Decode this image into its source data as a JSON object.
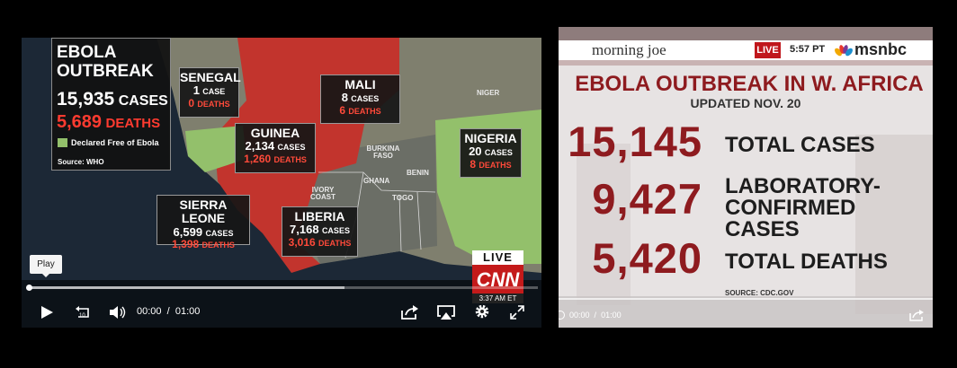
{
  "left_player": {
    "overlay": {
      "title": "EBOLA OUTBREAK",
      "cases": "15,935",
      "cases_label": "CASES",
      "deaths": "5,689",
      "deaths_label": "DEATHS",
      "legend": "Declared Free of Ebola",
      "source": "Source: WHO"
    },
    "countries": [
      {
        "name": "SENEGAL",
        "cases": "1",
        "cases_label": "CASE",
        "deaths": "0",
        "deaths_label": "DEATHS"
      },
      {
        "name": "MALI",
        "cases": "8",
        "cases_label": "CASES",
        "deaths": "6",
        "deaths_label": "DEATHS"
      },
      {
        "name": "GUINEA",
        "cases": "2,134",
        "cases_label": "CASES",
        "deaths": "1,260",
        "deaths_label": "DEATHS"
      },
      {
        "name": "NIGERIA",
        "cases": "20",
        "cases_label": "CASES",
        "deaths": "8",
        "deaths_label": "DEATHS"
      },
      {
        "name": "SIERRA LEONE",
        "cases": "6,599",
        "cases_label": "CASES",
        "deaths": "1,398",
        "deaths_label": "DEATHS"
      },
      {
        "name": "LIBERIA",
        "cases": "7,168",
        "cases_label": "CASES",
        "deaths": "3,016",
        "deaths_label": "DEATHS"
      }
    ],
    "map_labels": [
      "NIGER",
      "BURKINA FASO",
      "BENIN",
      "GHANA",
      "TOGO",
      "IVORY COAST"
    ],
    "network": {
      "live": "LIVE",
      "logo": "CNN",
      "time": "3:37 AM ET"
    },
    "tooltip": "Play",
    "controls": {
      "current": "00:00",
      "separator": "/",
      "duration": "01:00"
    }
  },
  "right_player": {
    "header": {
      "show": "morning joe",
      "live": "LIVE",
      "time": "5:57 PT",
      "network": "msnbc"
    },
    "title": "EBOLA OUTBREAK IN W. AFRICA",
    "subtitle": "UPDATED NOV. 20",
    "stats": [
      {
        "value": "15,145",
        "label": "TOTAL CASES"
      },
      {
        "value": "9,427",
        "label": "LABORATORY-CONFIRMED CASES"
      },
      {
        "value": "5,420",
        "label": "TOTAL DEATHS"
      }
    ],
    "source": "SOURCE: CDC.GOV",
    "controls": {
      "current": "00:00",
      "separator": "/",
      "duration": "01:00"
    }
  }
}
